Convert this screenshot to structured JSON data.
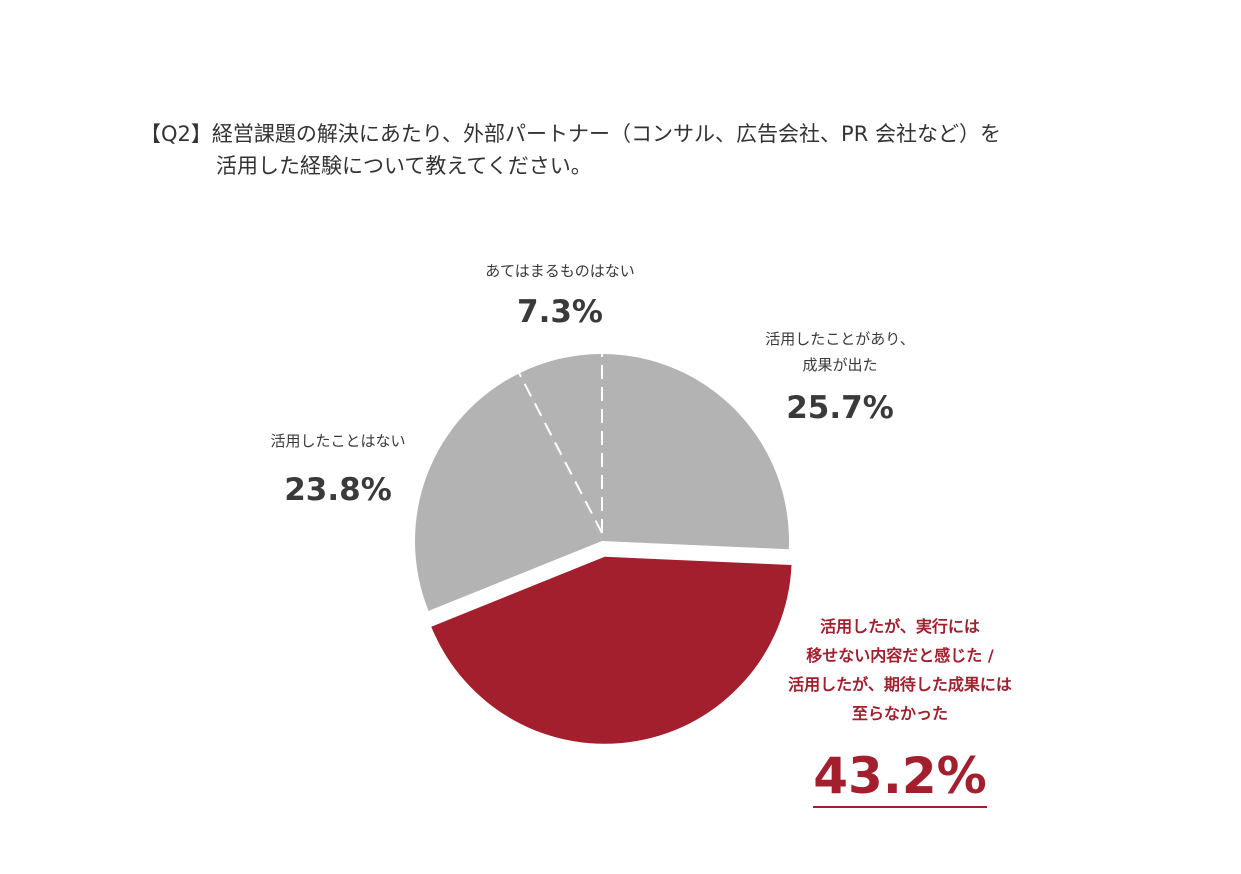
{
  "question": {
    "line1": "【Q2】経営課題の解決にあたり、外部パートナー（コンサル、広告会社、PR 会社など）を",
    "line2": "活用した経験について教えてください。"
  },
  "colors": {
    "gray": "#b3b3b3",
    "accent": "#a41f2d",
    "divider": "#ffffff"
  },
  "chart_data": {
    "type": "pie",
    "start_angle": "12 o'clock",
    "direction": "clockwise",
    "slices": [
      {
        "label": "活用したことがあり、\n成果が出た",
        "value": 25.7,
        "display": "25.7%",
        "color": "#b3b3b3",
        "exploded": false
      },
      {
        "label": "活用したが、実行には\n移せない内容だと感じた /\n活用したが、期待した成果には\n至らなかった",
        "value": 43.2,
        "display": "43.2%",
        "color": "#a41f2d",
        "exploded": true
      },
      {
        "label": "活用したことはない",
        "value": 23.8,
        "display": "23.8%",
        "color": "#b3b3b3",
        "exploded": false
      },
      {
        "label": "あてはまるものはない",
        "value": 7.3,
        "display": "7.3%",
        "color": "#b3b3b3",
        "exploded": false
      }
    ]
  }
}
